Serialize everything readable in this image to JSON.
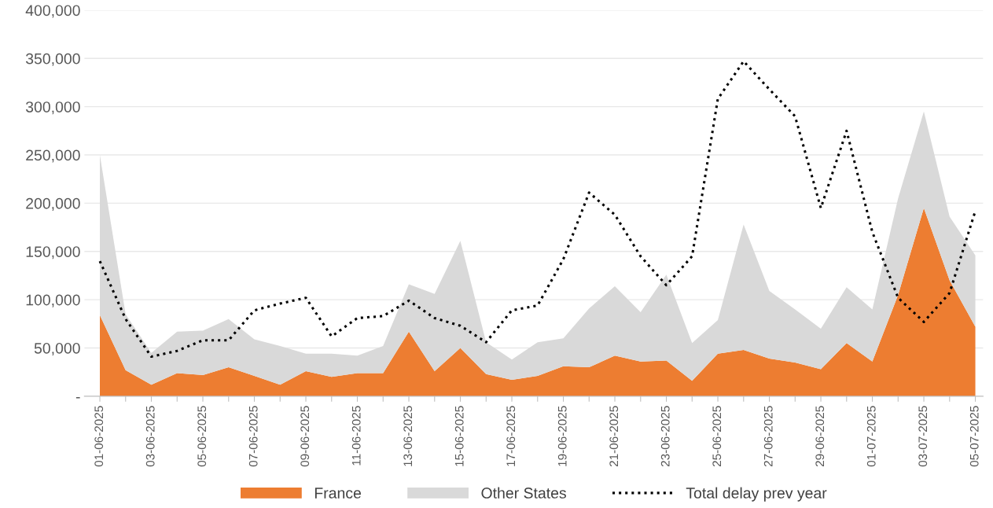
{
  "chart_data": {
    "type": "area",
    "stacked": true,
    "categories": [
      "01-06-2025",
      null,
      "03-06-2025",
      null,
      "05-06-2025",
      null,
      "07-06-2025",
      null,
      "09-06-2025",
      null,
      "11-06-2025",
      null,
      "13-06-2025",
      null,
      "15-06-2025",
      null,
      "17-06-2025",
      null,
      "19-06-2025",
      null,
      "21-06-2025",
      null,
      "23-06-2025",
      null,
      "25-06-2025",
      null,
      "27-06-2025",
      null,
      "29-06-2025",
      null,
      "01-07-2025",
      null,
      "03-07-2025",
      null,
      "05-07-2025"
    ],
    "series": [
      {
        "name": "France",
        "color": "#ed7d31",
        "values": [
          84000,
          27000,
          12000,
          24000,
          22000,
          30000,
          21000,
          12000,
          26000,
          20000,
          24000,
          24000,
          67000,
          26000,
          50000,
          23000,
          17000,
          21000,
          31000,
          30000,
          42000,
          36000,
          37000,
          16000,
          44000,
          48000,
          39000,
          35000,
          28000,
          55000,
          36000,
          105000,
          195000,
          120000,
          72000
        ]
      },
      {
        "name": "Other States",
        "color": "#d9d9d9",
        "values": [
          166000,
          58000,
          33000,
          43000,
          46000,
          50000,
          38000,
          40000,
          18000,
          24000,
          18000,
          28000,
          49000,
          80000,
          111000,
          33000,
          21000,
          35000,
          29000,
          61000,
          72000,
          51000,
          89000,
          39000,
          35000,
          130000,
          70000,
          55000,
          42000,
          58000,
          54000,
          100000,
          100000,
          66000,
          74000
        ]
      },
      {
        "name": "Total delay prev year",
        "type": "line",
        "color": "#000000",
        "line_style": "dotted",
        "values": [
          140000,
          80000,
          41000,
          47000,
          58000,
          58000,
          89000,
          96000,
          102000,
          62000,
          81000,
          83000,
          99000,
          81000,
          73000,
          56000,
          89000,
          94000,
          142000,
          211000,
          188000,
          145000,
          115000,
          145000,
          308000,
          347000,
          318000,
          290000,
          195000,
          275000,
          170000,
          102000,
          77000,
          107000,
          192000
        ]
      }
    ],
    "ylim": [
      0,
      400000
    ],
    "yticks": [
      {
        "value": 0,
        "label": "-"
      },
      {
        "value": 50000,
        "label": "50,000"
      },
      {
        "value": 100000,
        "label": "100,000"
      },
      {
        "value": 150000,
        "label": "150,000"
      },
      {
        "value": 200000,
        "label": "200,000"
      },
      {
        "value": 250000,
        "label": "250,000"
      },
      {
        "value": 300000,
        "label": "300,000"
      },
      {
        "value": 350000,
        "label": "350,000"
      },
      {
        "value": 400000,
        "label": "400,000"
      }
    ],
    "grid": "y",
    "legend": "bottom"
  }
}
